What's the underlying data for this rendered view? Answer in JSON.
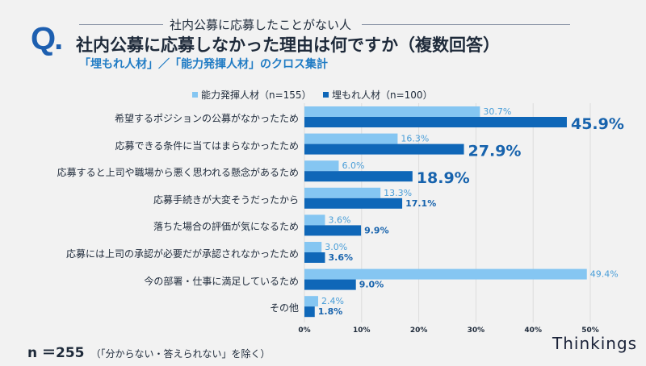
{
  "header": {
    "q_mark": "Q.",
    "subtitle": "社内公募に応募したことがない人",
    "title": "社内公募に応募しなかった理由は何ですか（複数回答）",
    "note": "「埋もれ人材」／「能力発揮人材」のクロス集計"
  },
  "footer": {
    "n": "n ＝255",
    "note": "（「分からない・答えられない」を除く）",
    "brand": "Thinkings"
  },
  "colors": {
    "light": "#85c6f2",
    "dark": "#0f67b8",
    "light_text": "#4a9ed8",
    "dark_text": "#1763ad"
  },
  "chart_data": {
    "type": "bar",
    "orientation": "horizontal",
    "categories": [
      "希望するポジションの公募がなかったため",
      "応募できる条件に当てはまらなかったため",
      "応募すると上司や職場から悪く思われる懸念があるため",
      "応募手続きが大変そうだったから",
      "落ちた場合の評価が気になるため",
      "応募には上司の承認が必要だが承認されなかったため",
      "今の部署・仕事に満足しているため",
      "その他"
    ],
    "series": [
      {
        "name": "能力発揮人材（n=155）",
        "values": [
          30.7,
          16.3,
          6.0,
          13.3,
          3.6,
          3.0,
          49.4,
          2.4
        ]
      },
      {
        "name": "埋もれ人材（n=100）",
        "values": [
          45.9,
          27.9,
          18.9,
          17.1,
          9.9,
          3.6,
          9.0,
          1.8
        ]
      }
    ],
    "highlighted": [
      true,
      true,
      true,
      false,
      false,
      false,
      false,
      false
    ],
    "xticks": [
      "0%",
      "10%",
      "20%",
      "30%",
      "40%",
      "50%"
    ],
    "xlim": [
      0,
      55
    ],
    "grid": true,
    "legend": "top"
  }
}
